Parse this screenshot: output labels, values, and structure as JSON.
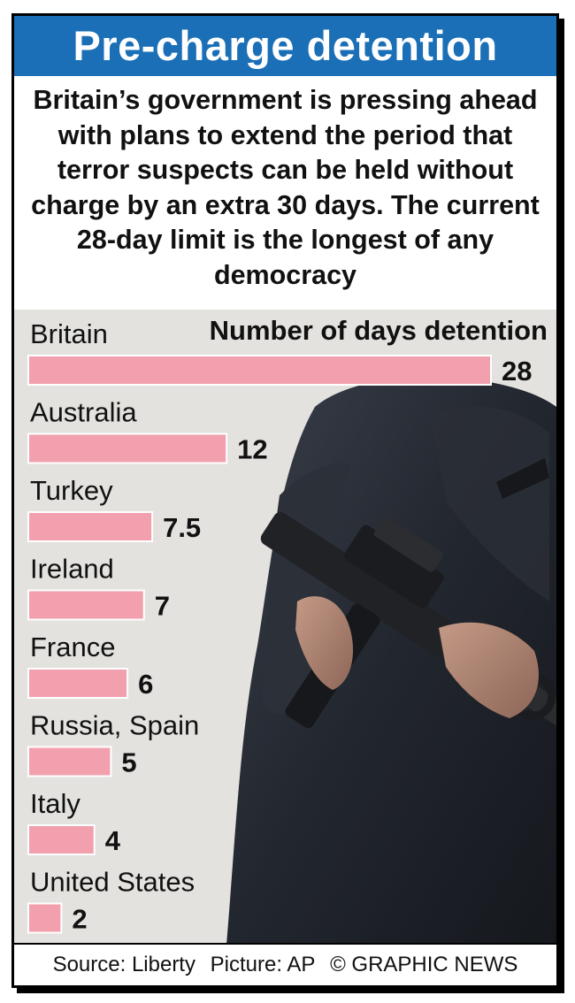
{
  "title": "Pre-charge detention",
  "subtitle": "Britain’s government is pressing ahead with plans to extend the period that terror suspects can be held without charge by an extra 30 days. The current 28-day limit is the longest of any democracy",
  "footer": {
    "source": "Source: Liberty",
    "picture": "Picture: AP",
    "credit": "© GRAPHIC NEWS"
  },
  "chart_data": {
    "type": "bar",
    "orientation": "horizontal",
    "measure_label": "Number of days detention",
    "categories": [
      "Britain",
      "Australia",
      "Turkey",
      "Ireland",
      "France",
      "Russia, Spain",
      "Italy",
      "United States"
    ],
    "values": [
      28,
      12,
      7.5,
      7,
      6,
      5,
      4,
      2
    ],
    "value_labels": [
      "28",
      "12",
      "7.5",
      "7",
      "6",
      "5",
      "4",
      "2"
    ],
    "xlim": [
      0,
      28
    ],
    "grid": false,
    "legend": "none",
    "colors": {
      "bar": "#f29fae",
      "bar_edge": "#ffffff",
      "title_bg": "#1a6fb7",
      "panel_bg": "#e3e2df"
    }
  }
}
